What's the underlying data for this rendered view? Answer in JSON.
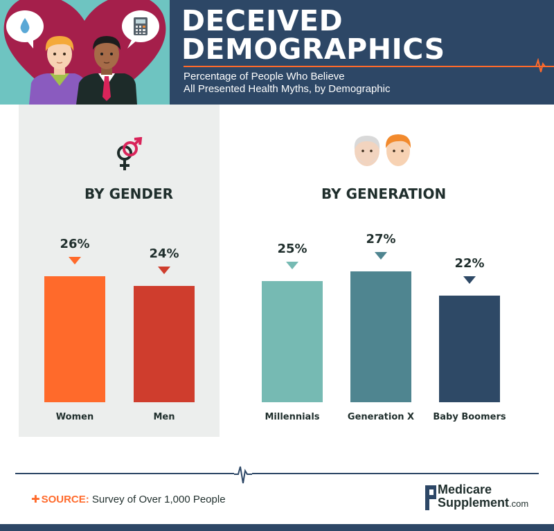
{
  "header": {
    "title_line1": "DECEIVED",
    "title_line2": "DEMOGRAPHICS",
    "subtitle_line1": "Percentage of People Who Believe",
    "subtitle_line2": "All Presented Health Myths, by Demographic"
  },
  "colors": {
    "navy": "#2d4766",
    "orange": "#ff6a2b",
    "red": "#cf3d2d",
    "teal_light": "#76bab3",
    "teal_mid": "#4f8590",
    "navy_bar": "#2e4966",
    "panel": "#eceeed",
    "heart": "#a51f4b"
  },
  "icons": {
    "header_left_bubble": "water-drop-icon",
    "header_right_bubble": "calculator-icon",
    "gender": "gender-symbol-icon",
    "generation": "faces-icon"
  },
  "chart_data": [
    {
      "type": "bar",
      "title": "BY GENDER",
      "categories": [
        "Women",
        "Men"
      ],
      "values": [
        26,
        24
      ],
      "value_labels": [
        "26%",
        "24%"
      ],
      "colors": [
        "#ff6a2b",
        "#cf3d2d"
      ],
      "ylim": [
        0,
        30
      ]
    },
    {
      "type": "bar",
      "title": "BY GENERATION",
      "categories": [
        "Millennials",
        "Generation X",
        "Baby Boomers"
      ],
      "values": [
        25,
        27,
        22
      ],
      "value_labels": [
        "25%",
        "27%",
        "22%"
      ],
      "colors": [
        "#76bab3",
        "#4f8590",
        "#2e4966"
      ],
      "ylim": [
        0,
        30
      ]
    }
  ],
  "footer": {
    "source_label": "SOURCE:",
    "source_text": "Survey of Over 1,000 People",
    "logo_line1": "Medicare",
    "logo_line2": "Supplement",
    "logo_domain": ".com"
  }
}
